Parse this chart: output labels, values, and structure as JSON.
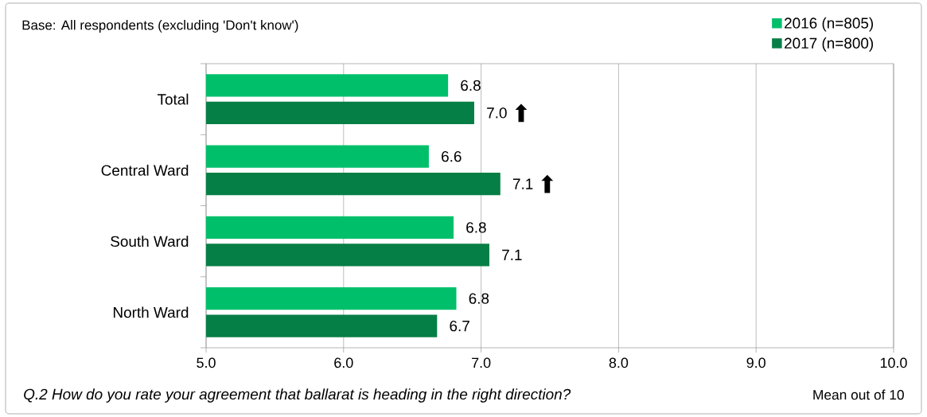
{
  "chart_data": {
    "type": "bar",
    "orientation": "horizontal",
    "categories": [
      "Total",
      "Central Ward",
      "South Ward",
      "North Ward"
    ],
    "series": [
      {
        "name": "2016 (n=805)",
        "color": "#00bf6b",
        "values": [
          6.76,
          6.62,
          6.8,
          6.82
        ],
        "value_labels": [
          "6.8",
          "6.6",
          "6.8",
          "6.8"
        ]
      },
      {
        "name": "2017 (n=800)",
        "color": "#067f46",
        "values": [
          6.95,
          7.14,
          7.06,
          6.68
        ],
        "value_labels": [
          "7.0",
          "7.1",
          "7.1",
          "6.7"
        ]
      }
    ],
    "xlim": [
      5,
      10
    ],
    "xticks": [
      {
        "value": 5,
        "label": "5.0"
      },
      {
        "value": 6,
        "label": "6.0"
      },
      {
        "value": 7,
        "label": "7.0"
      },
      {
        "value": 8,
        "label": "8.0"
      },
      {
        "value": 9,
        "label": "9.0"
      },
      {
        "value": 10,
        "label": "10.0"
      }
    ],
    "xlabel": "Mean out of 10",
    "grid": "x",
    "legend": "top right",
    "annotations": [
      "Base: All respondents (excluding 'Don't know')",
      "Q.2 How do you rate your agreement that ballarat is heading in the right direction?",
      {
        "text": "⬆",
        "x": 6.95,
        "y": "Total"
      },
      {
        "text": "⬆",
        "x": 7.14,
        "y": "Central Ward"
      }
    ]
  }
}
